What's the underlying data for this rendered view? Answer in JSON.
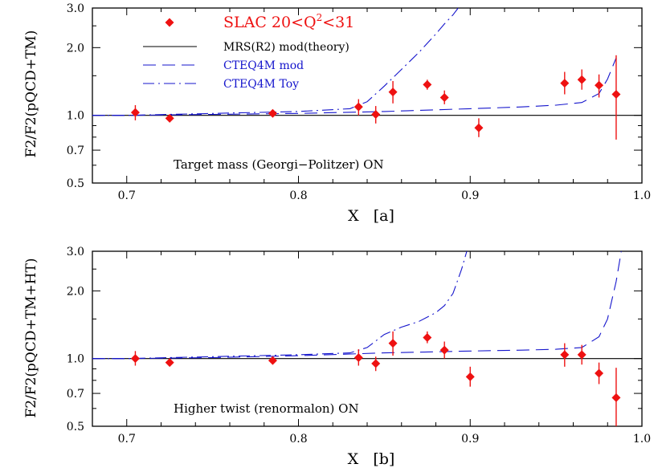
{
  "colors": {
    "data": "#ee1111",
    "theory": "#000000",
    "mod": "#1515cc",
    "toy": "#1515cc",
    "axes": "#000000"
  },
  "chart_data": [
    {
      "type": "scatter",
      "panel": "a",
      "ylabel": "F2/F2(pQCD+TM)",
      "xlabel": "X   [a]",
      "annotation": "Target mass (Georgi−Politzer) ON",
      "xlim": [
        0.68,
        1.0
      ],
      "ylim": [
        0.5,
        3.0
      ],
      "yscale": "log",
      "xticks": [
        "0.7",
        "0.8",
        "0.9",
        "1.0"
      ],
      "yticks": [
        "0.5",
        "0.7",
        "1.0",
        "2.0",
        "3.0"
      ],
      "legend": {
        "placement": "top-left",
        "entries": [
          {
            "key": "data",
            "text": "SLAC 20<Q2<31",
            "text_main": "SLAC 20<Q",
            "sup": "2",
            "text_tail": "<31"
          },
          {
            "key": "theory",
            "text": "MRS(R2) mod(theory)"
          },
          {
            "key": "mod",
            "text": "CTEQ4M mod"
          },
          {
            "key": "toy",
            "text": "CTEQ4M Toy"
          }
        ]
      },
      "data_points": [
        {
          "x": 0.705,
          "y": 1.03,
          "ylo": 0.95,
          "yhi": 1.11
        },
        {
          "x": 0.725,
          "y": 0.97,
          "ylo": 0.94,
          "yhi": 1.0
        },
        {
          "x": 0.785,
          "y": 1.02,
          "ylo": 0.99,
          "yhi": 1.05
        },
        {
          "x": 0.835,
          "y": 1.09,
          "ylo": 1.0,
          "yhi": 1.18
        },
        {
          "x": 0.845,
          "y": 1.01,
          "ylo": 0.92,
          "yhi": 1.1
        },
        {
          "x": 0.855,
          "y": 1.27,
          "ylo": 1.13,
          "yhi": 1.42
        },
        {
          "x": 0.875,
          "y": 1.37,
          "ylo": 1.3,
          "yhi": 1.44
        },
        {
          "x": 0.885,
          "y": 1.2,
          "ylo": 1.12,
          "yhi": 1.29
        },
        {
          "x": 0.905,
          "y": 0.88,
          "ylo": 0.8,
          "yhi": 0.97
        },
        {
          "x": 0.955,
          "y": 1.39,
          "ylo": 1.24,
          "yhi": 1.56
        },
        {
          "x": 0.965,
          "y": 1.44,
          "ylo": 1.3,
          "yhi": 1.6
        },
        {
          "x": 0.975,
          "y": 1.36,
          "ylo": 1.2,
          "yhi": 1.52
        },
        {
          "x": 0.985,
          "y": 1.24,
          "ylo": 0.78,
          "yhi": 1.85
        }
      ],
      "theory_line": {
        "x": [
          0.68,
          1.0
        ],
        "y": [
          1.0,
          1.0
        ]
      },
      "mod_curve": {
        "x": [
          0.68,
          0.7,
          0.75,
          0.8,
          0.85,
          0.9,
          0.93,
          0.95,
          0.965,
          0.975,
          0.98,
          0.985
        ],
        "y": [
          1.0,
          1.0,
          1.01,
          1.02,
          1.04,
          1.07,
          1.09,
          1.11,
          1.14,
          1.25,
          1.45,
          1.8
        ]
      },
      "toy_curve": {
        "x": [
          0.68,
          0.7,
          0.75,
          0.8,
          0.83,
          0.84,
          0.85,
          0.86,
          0.87,
          0.88,
          0.885,
          0.89,
          0.893
        ],
        "y": [
          1.0,
          1.0,
          1.02,
          1.04,
          1.07,
          1.15,
          1.35,
          1.6,
          1.9,
          2.3,
          2.55,
          2.8,
          3.0
        ]
      }
    },
    {
      "type": "scatter",
      "panel": "b",
      "ylabel": "F2/F2(pQCD+TM+HT)",
      "xlabel": "X   [b]",
      "annotation": "Higher twist (renormalon) ON",
      "xlim": [
        0.68,
        1.0
      ],
      "ylim": [
        0.5,
        3.0
      ],
      "yscale": "log",
      "xticks": [
        "0.7",
        "0.8",
        "0.9",
        "1.0"
      ],
      "yticks": [
        "0.5",
        "0.7",
        "1.0",
        "2.0",
        "3.0"
      ],
      "data_points": [
        {
          "x": 0.705,
          "y": 1.0,
          "ylo": 0.93,
          "yhi": 1.08
        },
        {
          "x": 0.725,
          "y": 0.96,
          "ylo": 0.93,
          "yhi": 0.99
        },
        {
          "x": 0.785,
          "y": 0.98,
          "ylo": 0.95,
          "yhi": 1.01
        },
        {
          "x": 0.835,
          "y": 1.01,
          "ylo": 0.93,
          "yhi": 1.1
        },
        {
          "x": 0.845,
          "y": 0.95,
          "ylo": 0.88,
          "yhi": 1.02
        },
        {
          "x": 0.855,
          "y": 1.17,
          "ylo": 1.03,
          "yhi": 1.32
        },
        {
          "x": 0.875,
          "y": 1.24,
          "ylo": 1.17,
          "yhi": 1.32
        },
        {
          "x": 0.885,
          "y": 1.09,
          "ylo": 1.0,
          "yhi": 1.19
        },
        {
          "x": 0.9,
          "y": 0.83,
          "ylo": 0.75,
          "yhi": 0.92
        },
        {
          "x": 0.955,
          "y": 1.04,
          "ylo": 0.92,
          "yhi": 1.17
        },
        {
          "x": 0.965,
          "y": 1.04,
          "ylo": 0.94,
          "yhi": 1.15
        },
        {
          "x": 0.975,
          "y": 0.86,
          "ylo": 0.77,
          "yhi": 0.96
        },
        {
          "x": 0.985,
          "y": 0.67,
          "ylo": 0.5,
          "yhi": 0.91
        }
      ],
      "theory_line": {
        "x": [
          0.68,
          1.0
        ],
        "y": [
          1.0,
          1.0
        ]
      },
      "mod_curve": {
        "x": [
          0.68,
          0.7,
          0.75,
          0.8,
          0.85,
          0.9,
          0.93,
          0.95,
          0.965,
          0.975,
          0.98,
          0.985,
          0.988
        ],
        "y": [
          1.0,
          1.0,
          1.01,
          1.03,
          1.06,
          1.08,
          1.09,
          1.1,
          1.12,
          1.25,
          1.5,
          2.2,
          3.0
        ]
      },
      "toy_curve": {
        "x": [
          0.68,
          0.7,
          0.75,
          0.8,
          0.83,
          0.84,
          0.85,
          0.86,
          0.87,
          0.88,
          0.885,
          0.89,
          0.895,
          0.898
        ],
        "y": [
          1.0,
          1.0,
          1.02,
          1.04,
          1.06,
          1.12,
          1.28,
          1.38,
          1.46,
          1.6,
          1.72,
          1.95,
          2.5,
          3.0
        ]
      }
    }
  ]
}
